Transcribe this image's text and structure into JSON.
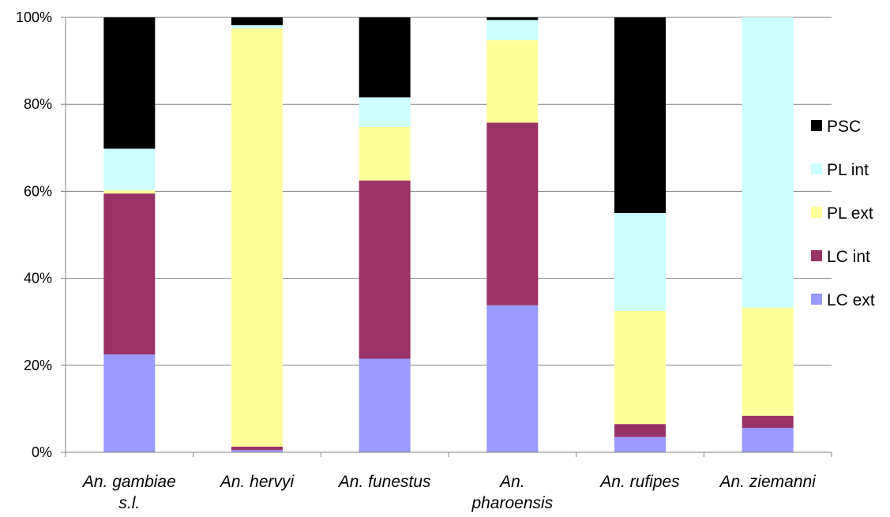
{
  "chart_data": {
    "type": "bar",
    "stacked": true,
    "percent": true,
    "categories": [
      [
        "An. gambiae",
        "s.l."
      ],
      [
        "An. hervyi"
      ],
      [
        "An. funestus"
      ],
      [
        "An.",
        "pharoensis"
      ],
      [
        "An. rufipes"
      ],
      [
        "An. ziemanni"
      ]
    ],
    "series": [
      {
        "name": "LC ext",
        "color": "#9999ff",
        "values": [
          22.5,
          0.5,
          21.5,
          33.8,
          3.5,
          5.6
        ]
      },
      {
        "name": "LC int",
        "color": "#993366",
        "values": [
          37.0,
          0.8,
          41.0,
          42.0,
          3.0,
          2.8
        ]
      },
      {
        "name": "PL ext",
        "color": "#ffff99",
        "values": [
          0.8,
          96.2,
          12.3,
          19.0,
          26.0,
          24.9
        ]
      },
      {
        "name": "PL int",
        "color": "#ccffff",
        "values": [
          9.5,
          0.7,
          6.8,
          4.6,
          22.5,
          66.7
        ]
      },
      {
        "name": "PSC",
        "color": "#000000",
        "values": [
          30.2,
          1.8,
          18.4,
          0.6,
          45.0,
          0.0
        ]
      }
    ],
    "legend_order": [
      "PSC",
      "PL int",
      "PL ext",
      "LC int",
      "LC ext"
    ],
    "ylim": [
      0,
      100
    ],
    "yticks": [
      "0%",
      "20%",
      "40%",
      "60%",
      "80%",
      "100%"
    ],
    "ytick_values": [
      0,
      20,
      40,
      60,
      80,
      100
    ],
    "xlabel": "",
    "ylabel": "",
    "title": "",
    "grid": true,
    "legend_position": "right"
  }
}
